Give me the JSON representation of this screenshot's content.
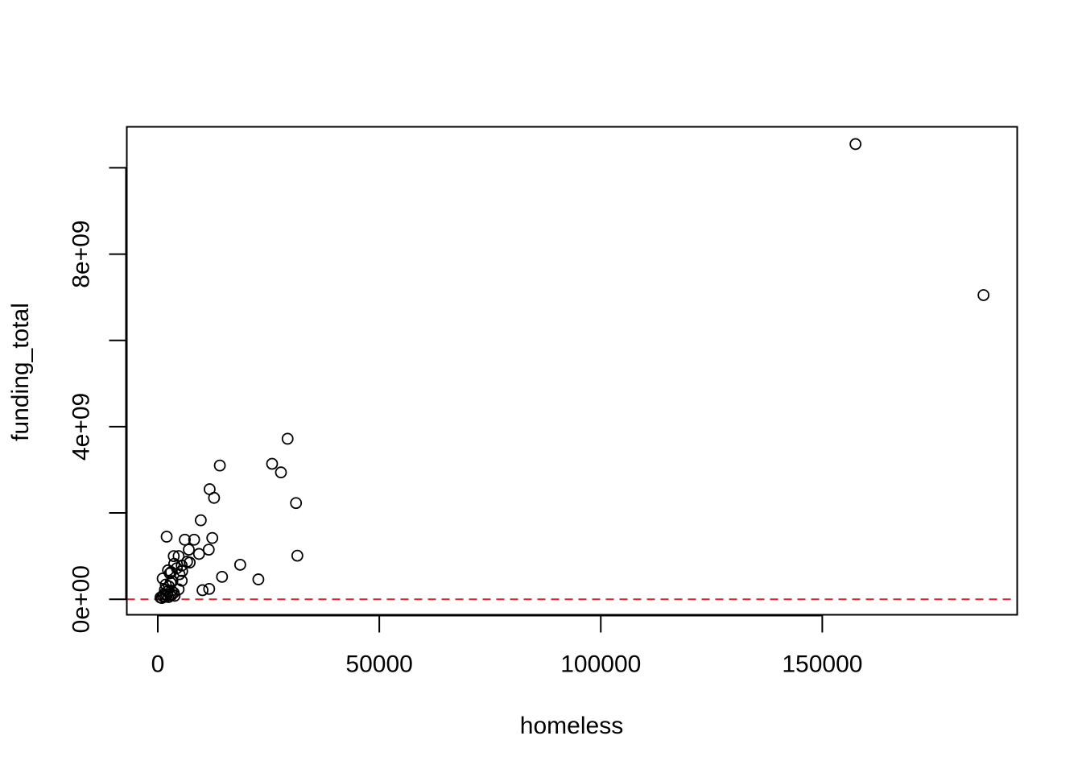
{
  "chart_data": {
    "type": "scatter",
    "title": "",
    "xlabel": "homeless",
    "ylabel": "funding_total",
    "xlim": [
      -7000,
      194000
    ],
    "ylim": [
      -360000000,
      10950000000
    ],
    "x_ticks": [
      0,
      50000,
      100000,
      150000
    ],
    "x_tick_labels": [
      "0",
      "50000",
      "100000",
      "150000"
    ],
    "y_ticks": [
      0,
      2000000000,
      4000000000,
      6000000000,
      8000000000,
      10000000000
    ],
    "y_tick_labels": [
      "0e+00",
      "",
      "4e+09",
      "",
      "8e+09",
      ""
    ],
    "grid": false,
    "reference_line": {
      "y": 0,
      "style": "dashed",
      "color": "#e0202a"
    },
    "point_color": "#000000",
    "points": [
      [
        157500,
        10550000000
      ],
      [
        186400,
        7050000000
      ],
      [
        29300,
        3720000000
      ],
      [
        25800,
        3140000000
      ],
      [
        27800,
        2940000000
      ],
      [
        14000,
        3100000000
      ],
      [
        11700,
        2550000000
      ],
      [
        12700,
        2350000000
      ],
      [
        31200,
        2230000000
      ],
      [
        9700,
        1830000000
      ],
      [
        2000,
        1450000000
      ],
      [
        12300,
        1420000000
      ],
      [
        6100,
        1380000000
      ],
      [
        8200,
        1380000000
      ],
      [
        7000,
        1150000000
      ],
      [
        11500,
        1150000000
      ],
      [
        9300,
        1050000000
      ],
      [
        31500,
        1010000000
      ],
      [
        3600,
        1000000000
      ],
      [
        4700,
        1000000000
      ],
      [
        7200,
        850000000
      ],
      [
        6600,
        870000000
      ],
      [
        18600,
        800000000
      ],
      [
        3700,
        820000000
      ],
      [
        5400,
        780000000
      ],
      [
        4300,
        720000000
      ],
      [
        2300,
        670000000
      ],
      [
        5500,
        650000000
      ],
      [
        3000,
        630000000
      ],
      [
        2700,
        600000000
      ],
      [
        4900,
        580000000
      ],
      [
        14500,
        520000000
      ],
      [
        1100,
        480000000
      ],
      [
        22700,
        460000000
      ],
      [
        5400,
        430000000
      ],
      [
        3300,
        420000000
      ],
      [
        2900,
        380000000
      ],
      [
        1800,
        340000000
      ],
      [
        2500,
        300000000
      ],
      [
        11600,
        240000000
      ],
      [
        4700,
        230000000
      ],
      [
        1600,
        220000000
      ],
      [
        10100,
        210000000
      ],
      [
        3100,
        200000000
      ],
      [
        2200,
        180000000
      ],
      [
        3600,
        150000000
      ],
      [
        1400,
        120000000
      ],
      [
        2000,
        100000000
      ],
      [
        2800,
        90000000
      ],
      [
        3800,
        80000000
      ],
      [
        1700,
        60000000
      ],
      [
        600,
        40000000
      ],
      [
        900,
        30000000
      ],
      [
        2400,
        50000000
      ],
      [
        1200,
        70000000
      ],
      [
        3200,
        110000000
      ]
    ]
  }
}
